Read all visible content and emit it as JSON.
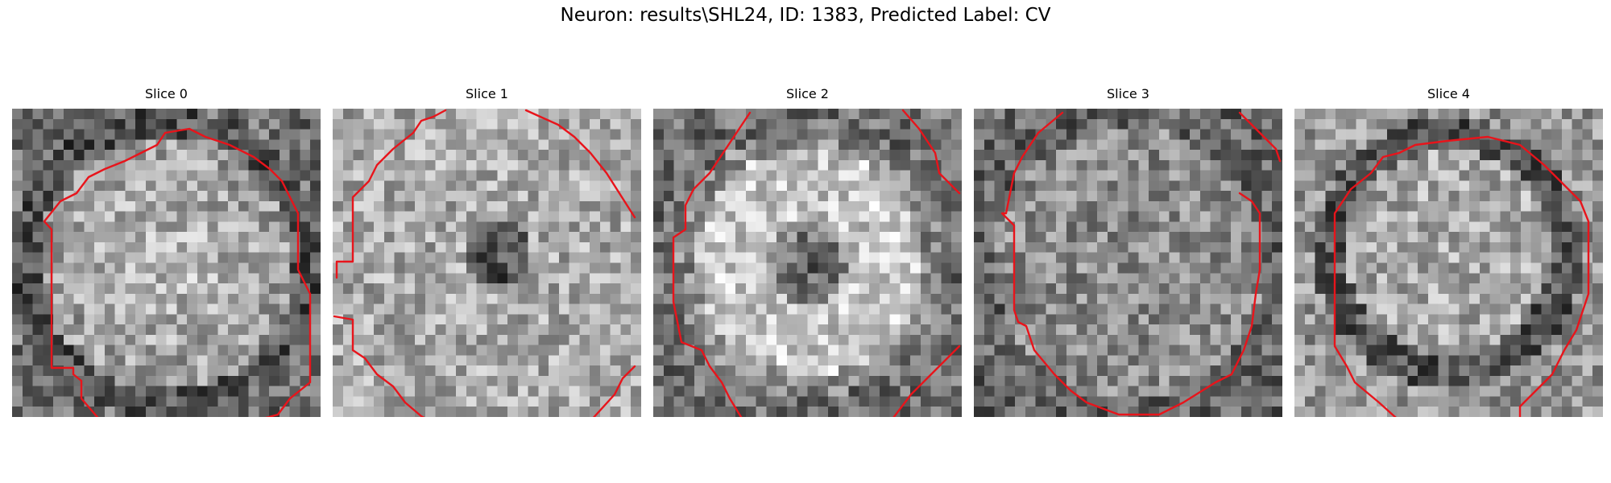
{
  "figure": {
    "title": "Neuron: results\\SHL24, ID: 1383, Predicted Label: CV"
  },
  "panels": [
    {
      "title": "Slice 0",
      "pattern": "ring-dark-edge"
    },
    {
      "title": "Slice 1",
      "pattern": "speckle-dark-center"
    },
    {
      "title": "Slice 2",
      "pattern": "bright-ring-dark-center"
    },
    {
      "title": "Slice 3",
      "pattern": "dark-speckle"
    },
    {
      "title": "Slice 4",
      "pattern": "dark-ring"
    }
  ],
  "colors": {
    "contour": "#e8141b",
    "colormap": "grayscale"
  }
}
